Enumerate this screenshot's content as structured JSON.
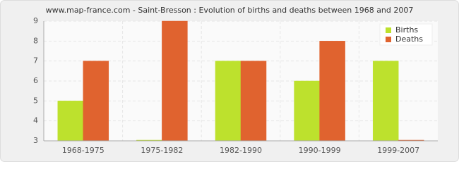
{
  "chart_data": {
    "type": "bar",
    "title": "www.map-france.com - Saint-Bresson : Evolution of births and deaths between 1968 and 2007",
    "categories": [
      "1968-1975",
      "1975-1982",
      "1982-1990",
      "1990-1999",
      "1999-2007"
    ],
    "series": [
      {
        "name": "Births",
        "color": "#bde12d",
        "values": [
          5,
          3,
          7,
          6,
          7
        ]
      },
      {
        "name": "Deaths",
        "color": "#e0632f",
        "values": [
          7,
          9,
          7,
          8,
          3
        ]
      }
    ],
    "ylim": [
      3,
      9
    ],
    "yticks": [
      3,
      4,
      5,
      6,
      7,
      8,
      9
    ],
    "grid": true,
    "legend": "top-right"
  }
}
